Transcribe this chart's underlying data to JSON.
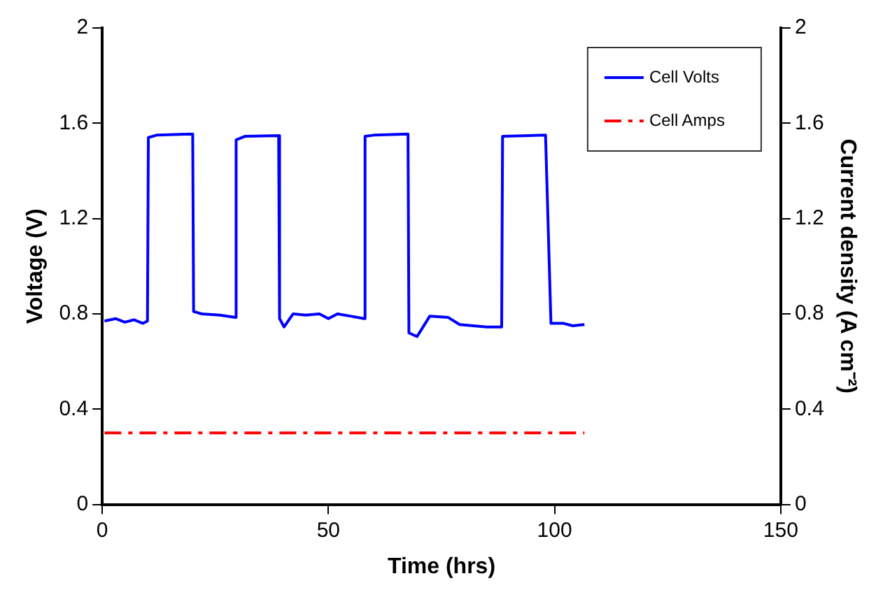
{
  "chart_data": {
    "type": "line",
    "xlabel": "Time (hrs)",
    "ylabel": "Voltage (V)",
    "y2label": "Current density (A cm⁻²)",
    "xlim": [
      0,
      150
    ],
    "xticks": [
      0,
      50,
      100,
      150
    ],
    "ylim": [
      0,
      2
    ],
    "yticks": [
      0,
      0.4,
      0.8,
      1.2,
      1.6,
      2
    ],
    "y2lim": [
      0,
      2
    ],
    "y2ticks": [
      0,
      0.4,
      0.8,
      1.2,
      1.6,
      2
    ],
    "grid": false,
    "legend": "top right",
    "marker": "none",
    "series": [
      {
        "name": "Cell Volts",
        "color": "#0000ff",
        "line_style": "solid",
        "x": [
          0.5,
          3,
          5,
          7,
          9,
          10,
          10.2,
          12,
          20,
          20.2,
          22,
          26,
          29.4,
          29.6,
          31.5,
          39,
          39.2,
          40.2,
          42.2,
          45,
          48,
          50,
          52,
          55,
          57.9,
          58.1,
          60,
          67.6,
          67.8,
          69.6,
          72.4,
          76.5,
          79,
          82,
          85,
          88.3,
          88.5,
          98,
          99.2,
          102,
          104,
          106.6
        ],
        "values": [
          0.77,
          0.78,
          0.765,
          0.775,
          0.76,
          0.77,
          1.54,
          1.55,
          1.555,
          0.81,
          0.8,
          0.795,
          0.785,
          1.53,
          1.545,
          1.548,
          0.78,
          0.745,
          0.8,
          0.795,
          0.8,
          0.78,
          0.8,
          0.79,
          0.78,
          1.545,
          1.55,
          1.555,
          0.72,
          0.705,
          0.79,
          0.785,
          0.755,
          0.75,
          0.745,
          0.745,
          1.545,
          1.55,
          0.76,
          0.76,
          0.75,
          0.755
        ]
      },
      {
        "name": "Cell Amps",
        "color": "#ff0000",
        "line_style": "dashed",
        "axis": "y2",
        "x": [
          0.5,
          106.6
        ],
        "values": [
          0.3,
          0.3
        ]
      }
    ]
  }
}
